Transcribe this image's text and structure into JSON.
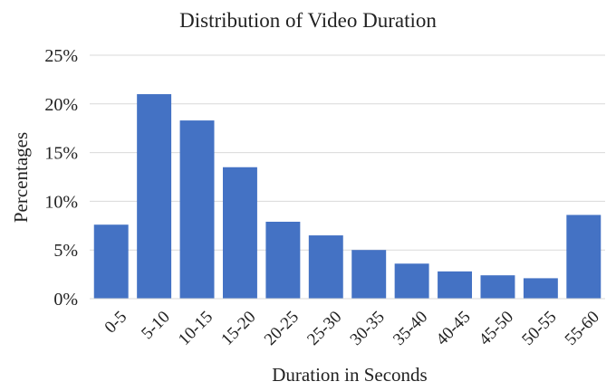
{
  "chart_data": {
    "type": "bar",
    "title": "Distribution of Video Duration",
    "xlabel": "Duration in Seconds",
    "ylabel": "Percentages",
    "categories": [
      "0-5",
      "5-10",
      "10-15",
      "15-20",
      "20-25",
      "25-30",
      "30-35",
      "35-40",
      "40-45",
      "45-50",
      "50-55",
      "55-60"
    ],
    "values": [
      7.6,
      21.0,
      18.3,
      13.5,
      7.9,
      6.5,
      5.0,
      3.6,
      2.8,
      2.4,
      2.1,
      8.6
    ],
    "ylim": [
      0,
      25
    ],
    "yticks": [
      0,
      5,
      10,
      15,
      20,
      25
    ],
    "ytick_labels": [
      "0%",
      "5%",
      "10%",
      "15%",
      "20%",
      "25%"
    ],
    "grid": true,
    "legend": "none",
    "bar_color": "#4472C4",
    "grid_color": "#D9D9D9"
  }
}
